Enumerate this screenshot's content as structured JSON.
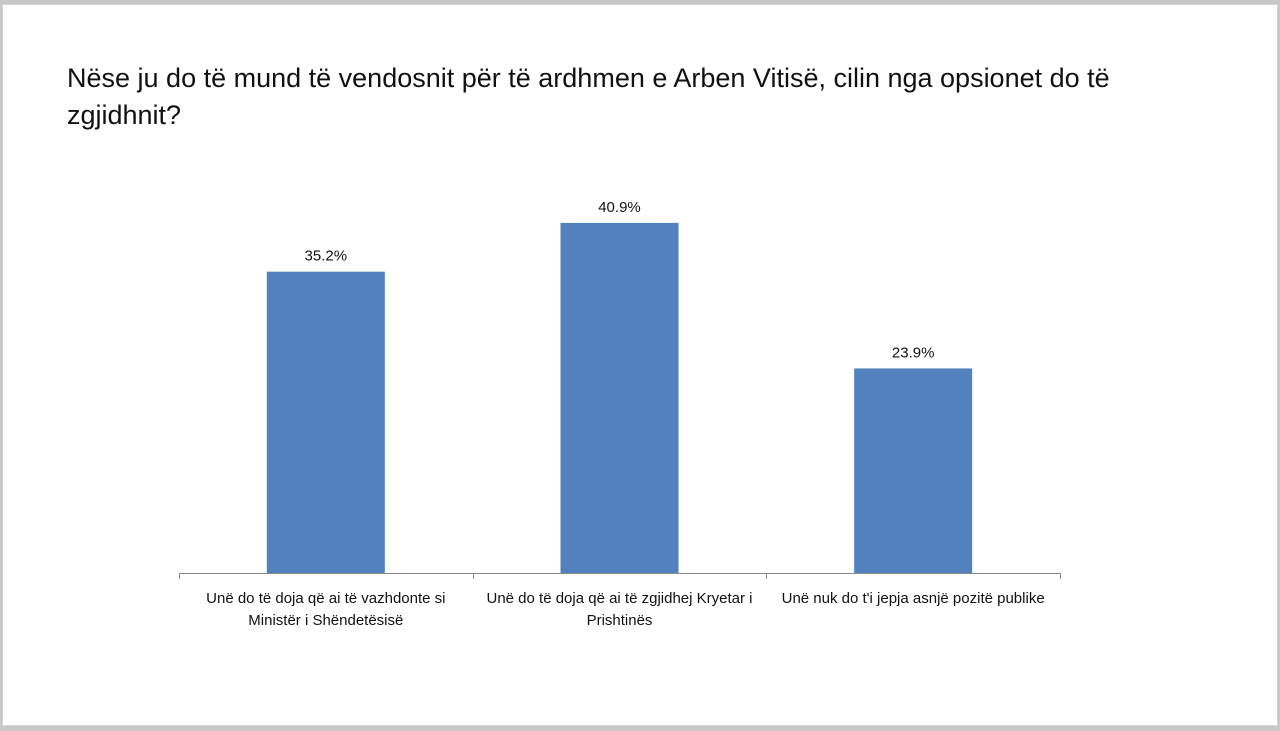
{
  "chart_data": {
    "type": "bar",
    "title": "Nëse ju do të mund të vendosnit për të ardhmen e Arben Vitisë, cilin nga opsionet do të zgjidhnit?",
    "categories": [
      "Unë do të doja që ai të vazhdonte si Ministër i Shëndetësisë",
      "Unë do të doja që ai të zgjidhej Kryetar i Prishtinës",
      "Unë nuk do t'i jepja asnjë pozitë publike"
    ],
    "values": [
      35.2,
      40.9,
      23.9
    ],
    "data_labels": [
      "35.2%",
      "40.9%",
      "23.9%"
    ],
    "ylim": [
      0,
      50
    ],
    "grid": false,
    "legend": "none",
    "colors": {
      "bar": "#5281BE",
      "axis": "#888888"
    }
  }
}
